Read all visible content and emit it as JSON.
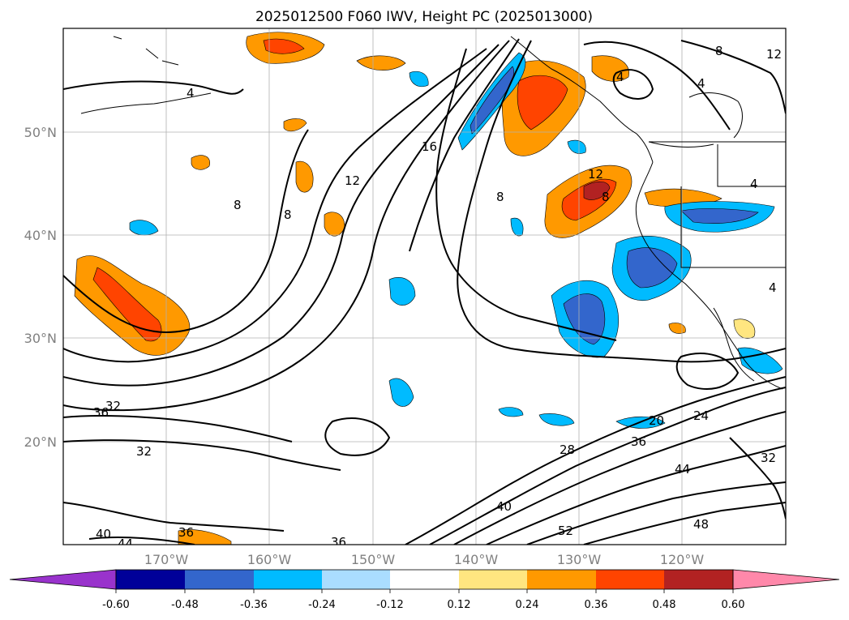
{
  "map": {
    "title": "2025012500 F060 IWV, Height PC (2025013000)",
    "lat_labels": [
      "50°N",
      "40°N",
      "30°N",
      "20°N"
    ],
    "lon_labels": [
      "170°W",
      "160°W",
      "150°W",
      "140°W",
      "130°W",
      "120°W"
    ],
    "contour_labels": [
      "4",
      "4",
      "4",
      "4",
      "4",
      "8",
      "8",
      "8",
      "8",
      "8",
      "12",
      "12",
      "12",
      "16",
      "20",
      "24",
      "28",
      "32",
      "32",
      "32",
      "36",
      "36",
      "36",
      "36",
      "40",
      "40",
      "44",
      "44",
      "48",
      "52"
    ]
  },
  "colorbar": {
    "ticks": [
      "-0.60",
      "-0.48",
      "-0.36",
      "-0.24",
      "-0.12",
      "0.12",
      "0.24",
      "0.36",
      "0.48",
      "0.60"
    ],
    "colors": [
      "#9933cc",
      "#000099",
      "#3366cc",
      "#00bbff",
      "#aaddff",
      "#ffffff",
      "#ffe680",
      "#ff9900",
      "#ff4400",
      "#b22222",
      "#ff88aa"
    ]
  }
}
